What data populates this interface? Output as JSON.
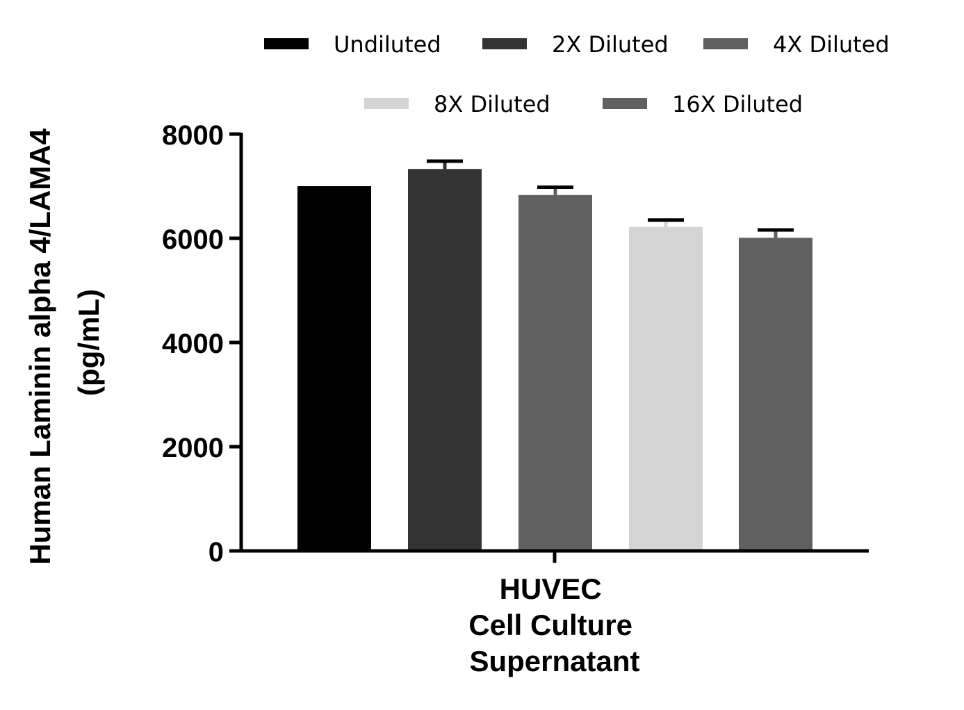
{
  "chart_data": {
    "type": "bar",
    "ylabel_lines": [
      "Human Laminin alpha 4/LAMA4",
      "(pg/mL)"
    ],
    "category_lines": [
      "HUVEC",
      "Cell Culture",
      "Supernatant"
    ],
    "ylim": [
      0,
      8000
    ],
    "yticks": [
      0,
      2000,
      4000,
      6000,
      8000
    ],
    "ytick_labels": [
      "0",
      "2000",
      "4000",
      "6000",
      "8000"
    ],
    "grid": false,
    "legend_position": "top",
    "series": [
      {
        "name": "Undiluted",
        "value": 7000,
        "error": 0,
        "color": "#000000"
      },
      {
        "name": "2X Diluted",
        "value": 7330,
        "error": 150,
        "color": "#333333"
      },
      {
        "name": "4X Diluted",
        "value": 6830,
        "error": 150,
        "color": "#606060"
      },
      {
        "name": "8X Diluted",
        "value": 6220,
        "error": 130,
        "color": "#d4d4d4"
      },
      {
        "name": "16X Diluted",
        "value": 6010,
        "error": 150,
        "color": "#606060"
      }
    ]
  }
}
